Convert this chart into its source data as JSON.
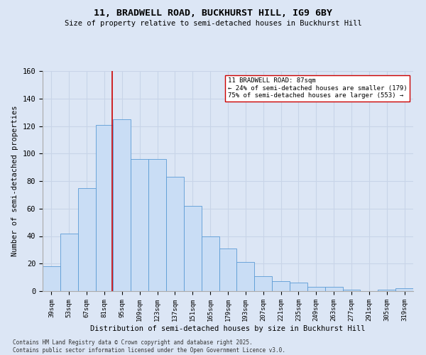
{
  "title1": "11, BRADWELL ROAD, BUCKHURST HILL, IG9 6BY",
  "title2": "Size of property relative to semi-detached houses in Buckhurst Hill",
  "xlabel": "Distribution of semi-detached houses by size in Buckhurst Hill",
  "ylabel": "Number of semi-detached properties",
  "annotation_title": "11 BRADWELL ROAD: 87sqm",
  "annotation_line1": "← 24% of semi-detached houses are smaller (179)",
  "annotation_line2": "75% of semi-detached houses are larger (553) →",
  "footer1": "Contains HM Land Registry data © Crown copyright and database right 2025.",
  "footer2": "Contains public sector information licensed under the Open Government Licence v3.0.",
  "bar_labels": [
    "39sqm",
    "53sqm",
    "67sqm",
    "81sqm",
    "95sqm",
    "109sqm",
    "123sqm",
    "137sqm",
    "151sqm",
    "165sqm",
    "179sqm",
    "193sqm",
    "207sqm",
    "221sqm",
    "235sqm",
    "249sqm",
    "263sqm",
    "277sqm",
    "291sqm",
    "305sqm",
    "319sqm"
  ],
  "bar_values": [
    18,
    42,
    75,
    121,
    125,
    96,
    96,
    83,
    62,
    40,
    31,
    21,
    11,
    7,
    6,
    3,
    3,
    1,
    0,
    1,
    2
  ],
  "bar_color": "#c9ddf5",
  "bar_edge_color": "#5b9bd5",
  "grid_color": "#c8d4e8",
  "background_color": "#dce6f5",
  "vline_x_index": 3.43,
  "vline_color": "#cc0000",
  "annotation_box_facecolor": "#ffffff",
  "annotation_box_edgecolor": "#cc0000",
  "ylim": [
    0,
    160
  ],
  "yticks": [
    0,
    20,
    40,
    60,
    80,
    100,
    120,
    140,
    160
  ]
}
